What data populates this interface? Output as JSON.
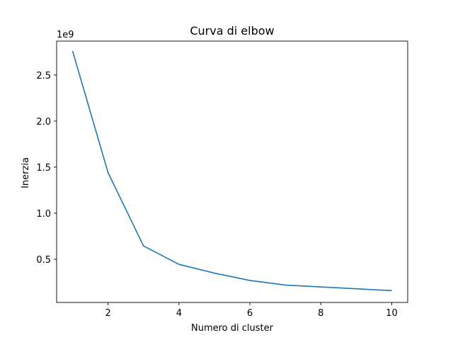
{
  "chart_data": {
    "type": "line",
    "title": "Curva di elbow",
    "xlabel": "Numero di cluster",
    "ylabel": "Inerzia",
    "y_offset_label": "1e9",
    "x_ticks": [
      "2",
      "4",
      "6",
      "8",
      "10"
    ],
    "y_ticks": [
      "0.5",
      "1.0",
      "1.5",
      "2.0",
      "2.5"
    ],
    "xlim": [
      0.55,
      10.45
    ],
    "ylim": [
      0.0315,
      2.868
    ],
    "grid": false,
    "line_color": "#1f77b4",
    "series": [
      {
        "x": [
          1,
          2,
          3,
          4,
          5,
          6,
          7,
          8,
          9,
          10
        ],
        "y": [
          2.76,
          1.44,
          0.645,
          0.445,
          0.35,
          0.27,
          0.22,
          0.2,
          0.18,
          0.16
        ]
      }
    ]
  }
}
